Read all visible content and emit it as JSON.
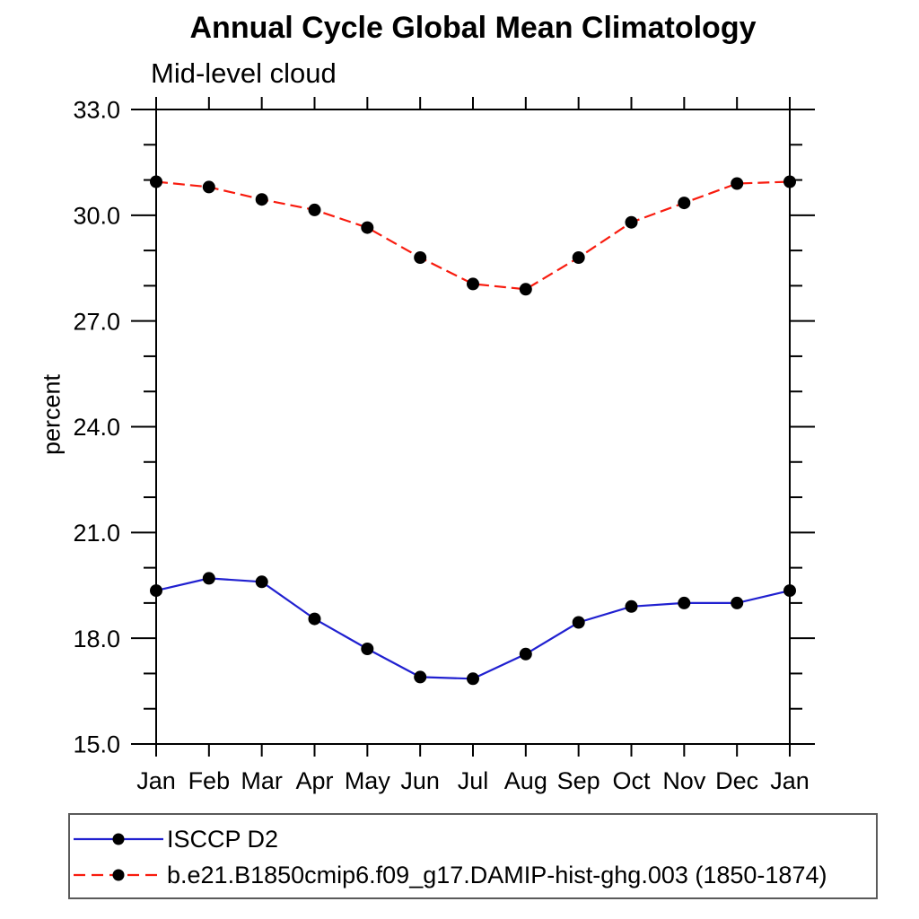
{
  "chart_data": {
    "type": "line",
    "title": "Annual Cycle Global Mean Climatology",
    "subtitle": "Mid-level cloud",
    "ylabel": "percent",
    "xlabel": "",
    "categories": [
      "Jan",
      "Feb",
      "Mar",
      "Apr",
      "May",
      "Jun",
      "Jul",
      "Aug",
      "Sep",
      "Oct",
      "Nov",
      "Dec",
      "Jan"
    ],
    "ylim": [
      15.0,
      33.0
    ],
    "ytick_major_values": [
      15,
      18,
      21,
      24,
      27,
      30,
      33
    ],
    "ytick_major_labels": [
      "15.0",
      "18.0",
      "21.0",
      "24.0",
      "27.0",
      "30.0",
      "33.0"
    ],
    "ytick_minor_interval": 1.0,
    "grid": false,
    "legend_position": "bottom-left",
    "frame_color": "#000000",
    "marker_shape": "filled-circle",
    "series": [
      {
        "name": "ISCCP D2",
        "color": "#2020d0",
        "line_style": "solid",
        "marker": "filled-circle",
        "marker_color": "#000000",
        "values": [
          19.35,
          19.7,
          19.6,
          18.55,
          17.7,
          16.9,
          16.85,
          17.55,
          18.45,
          18.9,
          19.0,
          19.0,
          19.35
        ]
      },
      {
        "name": "b.e21.B1850cmip6.f09_g17.DAMIP-hist-ghg.003 (1850-1874)",
        "color": "#f81b0e",
        "line_style": "dashed",
        "marker": "filled-circle",
        "marker_color": "#000000",
        "values": [
          30.95,
          30.8,
          30.45,
          30.15,
          29.65,
          28.8,
          28.05,
          27.9,
          28.8,
          29.8,
          30.35,
          30.9,
          30.95
        ]
      }
    ]
  }
}
